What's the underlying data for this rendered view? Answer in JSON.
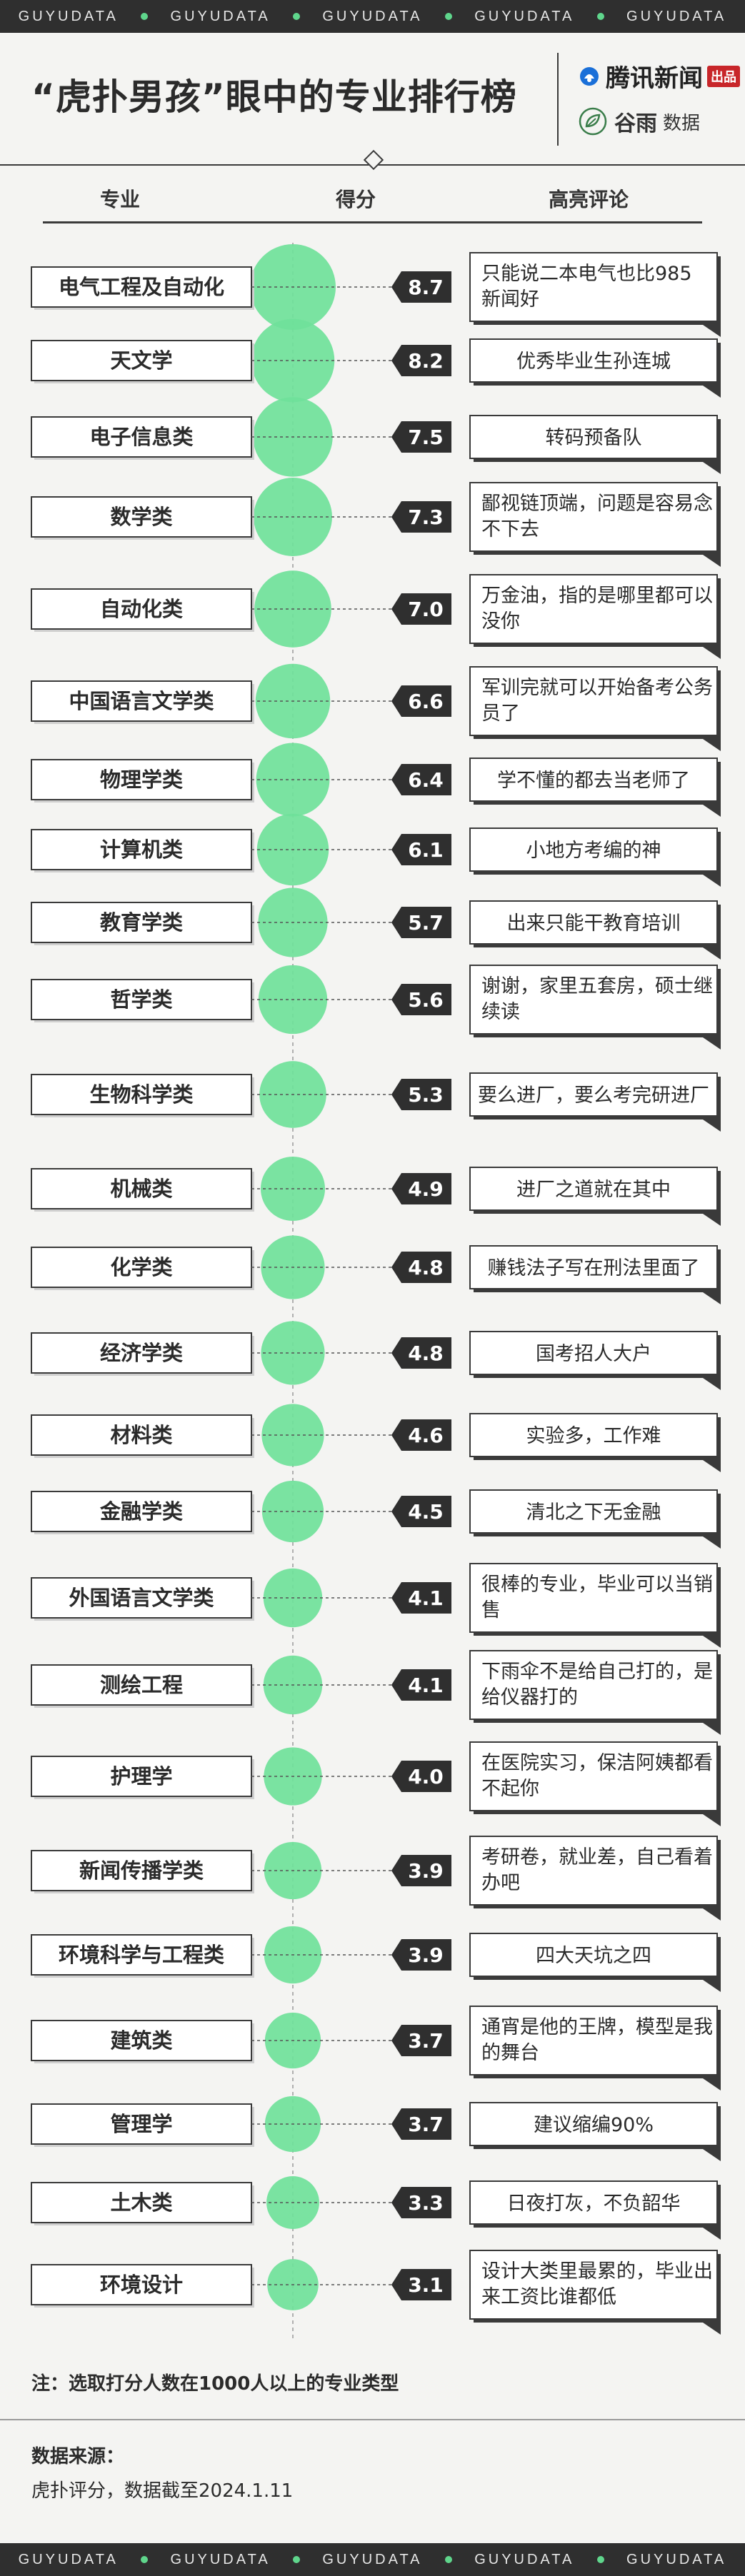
{
  "banner": {
    "words": [
      "GUYUDATA",
      "GUYUDATA",
      "GUYUDATA",
      "GUYUDATA",
      "GUYUDATA"
    ],
    "dot_color": "#5fd68c"
  },
  "header": {
    "title": "“虎扑男孩”眼中的专业排行榜",
    "logo_tencent": "腾讯新闻",
    "logo_chupin": "出品",
    "logo_guyu_1": "谷雨",
    "logo_guyu_2": "数据"
  },
  "columns": {
    "major": "专业",
    "score": "得分",
    "comment": "高亮评论"
  },
  "colors": {
    "circle": "#6fe19a",
    "badge": "#2f2f2f",
    "box_border": "#3a3a3a"
  },
  "chart_data": {
    "type": "table",
    "title": "“虎扑男孩”眼中的专业排行榜",
    "circle_scale": "circle size proportional to score",
    "rows": [
      {
        "major": "电气工程及自动化",
        "score": 8.7,
        "comment": "只能说二本电气也比985新闻好"
      },
      {
        "major": "天文学",
        "score": 8.2,
        "comment": "优秀毕业生孙连城"
      },
      {
        "major": "电子信息类",
        "score": 7.5,
        "comment": "转码预备队"
      },
      {
        "major": "数学类",
        "score": 7.3,
        "comment": "鄙视链顶端，问题是容易念不下去"
      },
      {
        "major": "自动化类",
        "score": 7.0,
        "comment": "万金油，指的是哪里都可以没你"
      },
      {
        "major": "中国语言文学类",
        "score": 6.6,
        "comment": "军训完就可以开始备考公务员了"
      },
      {
        "major": "物理学类",
        "score": 6.4,
        "comment": "学不懂的都去当老师了"
      },
      {
        "major": "计算机类",
        "score": 6.1,
        "comment": "小地方考编的神"
      },
      {
        "major": "教育学类",
        "score": 5.7,
        "comment": "出来只能干教育培训"
      },
      {
        "major": "哲学类",
        "score": 5.6,
        "comment": "谢谢，家里五套房，硕士继续读"
      },
      {
        "major": "生物科学类",
        "score": 5.3,
        "comment": "要么进厂，要么考完研进厂"
      },
      {
        "major": "机械类",
        "score": 4.9,
        "comment": "进厂之道就在其中"
      },
      {
        "major": "化学类",
        "score": 4.8,
        "comment": "赚钱法子写在刑法里面了"
      },
      {
        "major": "经济学类",
        "score": 4.8,
        "comment": "国考招人大户"
      },
      {
        "major": "材料类",
        "score": 4.6,
        "comment": "实验多，工作难"
      },
      {
        "major": "金融学类",
        "score": 4.5,
        "comment": "清北之下无金融"
      },
      {
        "major": "外国语言文学类",
        "score": 4.1,
        "comment": "很棒的专业，毕业可以当销售"
      },
      {
        "major": "测绘工程",
        "score": 4.1,
        "comment": "下雨伞不是给自己打的，是给仪器打的"
      },
      {
        "major": "护理学",
        "score": 4.0,
        "comment": "在医院实习，保洁阿姨都看不起你"
      },
      {
        "major": "新闻传播学类",
        "score": 3.9,
        "comment": "考研卷，就业差，自己看着办吧"
      },
      {
        "major": "环境科学与工程类",
        "score": 3.9,
        "comment": "四大天坑之四"
      },
      {
        "major": "建筑类",
        "score": 3.7,
        "comment": "通宵是他的王牌，模型是我的舞台"
      },
      {
        "major": "管理学",
        "score": 3.7,
        "comment": "建议缩编90%"
      },
      {
        "major": "土木类",
        "score": 3.3,
        "comment": "日夜打灰，不负韶华"
      },
      {
        "major": "环境设计",
        "score": 3.1,
        "comment": "设计大类里最累的，毕业出来工资比谁都低"
      }
    ]
  },
  "note": "注：选取打分人数在1000人以上的专业类型",
  "source": {
    "title": "数据来源：",
    "text": "虎扑评分，数据截至2024.1.11"
  }
}
